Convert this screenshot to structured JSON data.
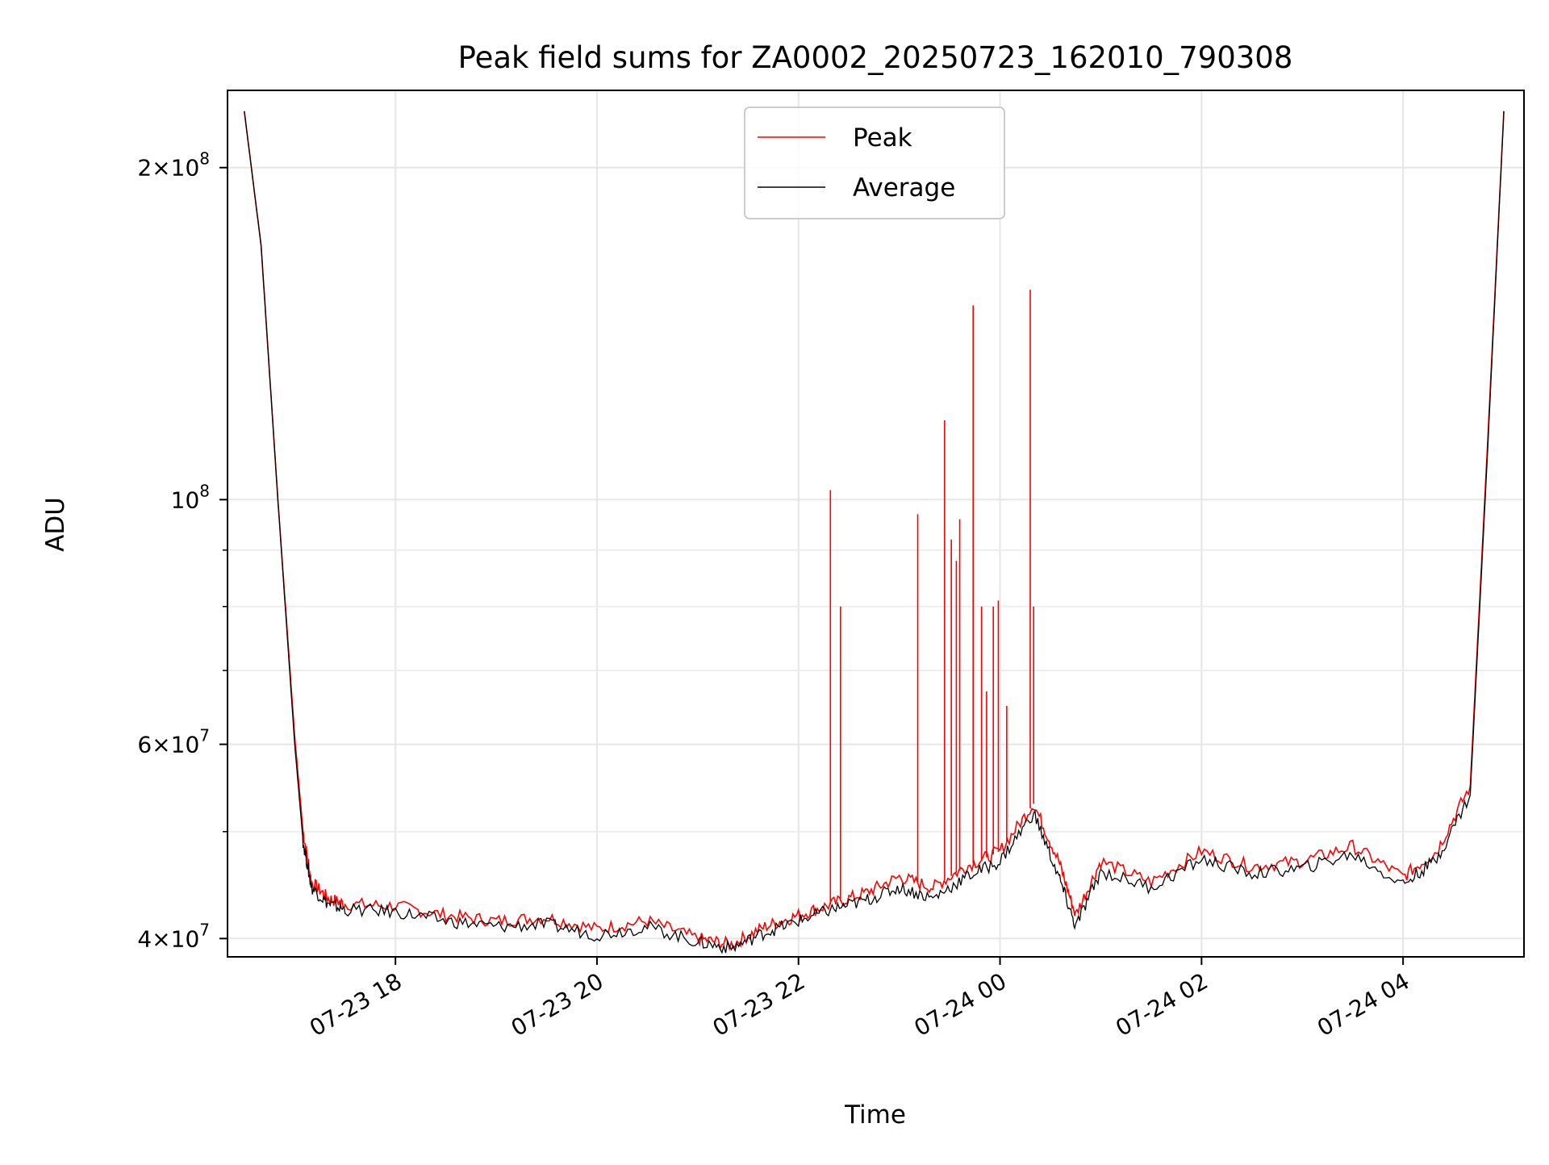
{
  "chart_data": {
    "type": "line",
    "title": "Peak field sums for ZA0002_20250723_162010_790308",
    "xlabel": "Time",
    "ylabel": "ADU",
    "yscale": "log",
    "ylim": [
      38500000,
      235000000
    ],
    "xlim": [
      "2025-07-23 16:20",
      "2025-07-24 05:12"
    ],
    "grid": true,
    "legend_position": "top-center",
    "x_ticks": [
      "2025-07-23 18:00",
      "2025-07-23 20:00",
      "2025-07-23 22:00",
      "2025-07-24 00:00",
      "2025-07-24 02:00",
      "2025-07-24 04:00"
    ],
    "x_tick_labels": [
      "07-23 18",
      "07-23 20",
      "07-23 22",
      "07-24 00",
      "07-24 02",
      "07-24 04"
    ],
    "y_ticks": [
      200000000,
      100000000,
      60000000,
      40000000
    ],
    "y_tick_labels": [
      {
        "base": "2×10",
        "exp": "8"
      },
      {
        "base": "10",
        "exp": "8"
      },
      {
        "base": "6×10",
        "exp": "7"
      },
      {
        "base": "4×10",
        "exp": "7"
      }
    ],
    "y_minor_ticks": [
      50000000,
      70000000,
      80000000,
      90000000
    ],
    "series": [
      {
        "name": "Peak",
        "color": "#ff0000",
        "x": [
          "2025-07-23 16:30",
          "2025-07-23 16:40",
          "2025-07-23 16:50",
          "2025-07-23 17:00",
          "2025-07-23 17:05",
          "2025-07-23 17:10",
          "2025-07-23 17:20",
          "2025-07-23 17:30",
          "2025-07-23 18:00",
          "2025-07-23 18:30",
          "2025-07-23 19:00",
          "2025-07-23 19:30",
          "2025-07-23 20:00",
          "2025-07-23 20:30",
          "2025-07-23 21:00",
          "2025-07-23 21:20",
          "2025-07-23 21:40",
          "2025-07-23 22:00",
          "2025-07-23 22:20",
          "2025-07-23 22:40",
          "2025-07-23 23:00",
          "2025-07-23 23:20",
          "2025-07-23 23:40",
          "2025-07-24 00:00",
          "2025-07-24 00:20",
          "2025-07-24 00:35",
          "2025-07-24 00:45",
          "2025-07-24 01:00",
          "2025-07-24 01:30",
          "2025-07-24 02:00",
          "2025-07-24 02:30",
          "2025-07-24 03:00",
          "2025-07-24 03:30",
          "2025-07-24 04:00",
          "2025-07-24 04:20",
          "2025-07-24 04:40",
          "2025-07-24 04:50",
          "2025-07-24 05:00"
        ],
        "values": [
          225000000,
          170000000,
          100000000,
          61000000,
          50000000,
          45000000,
          43500000,
          43000000,
          42800000,
          42000000,
          41500000,
          41800000,
          40800000,
          41500000,
          40000000,
          39500000,
          41000000,
          42000000,
          43000000,
          44000000,
          45500000,
          44500000,
          46500000,
          48000000,
          53000000,
          47000000,
          42000000,
          47000000,
          45000000,
          48000000,
          46500000,
          47000000,
          48500000,
          45500000,
          48000000,
          55000000,
          110000000,
          225000000
        ]
      },
      {
        "name": "Average",
        "color": "#000000",
        "x": [
          "2025-07-23 16:30",
          "2025-07-23 16:40",
          "2025-07-23 16:50",
          "2025-07-23 17:00",
          "2025-07-23 17:05",
          "2025-07-23 17:10",
          "2025-07-23 17:20",
          "2025-07-23 17:30",
          "2025-07-23 18:00",
          "2025-07-23 18:30",
          "2025-07-23 19:00",
          "2025-07-23 19:30",
          "2025-07-23 20:00",
          "2025-07-23 20:30",
          "2025-07-23 21:00",
          "2025-07-23 21:20",
          "2025-07-23 21:40",
          "2025-07-23 22:00",
          "2025-07-23 22:20",
          "2025-07-23 22:40",
          "2025-07-23 23:00",
          "2025-07-23 23:20",
          "2025-07-23 23:40",
          "2025-07-24 00:00",
          "2025-07-24 00:20",
          "2025-07-24 00:35",
          "2025-07-24 00:45",
          "2025-07-24 01:00",
          "2025-07-24 01:30",
          "2025-07-24 02:00",
          "2025-07-24 02:30",
          "2025-07-24 03:00",
          "2025-07-24 03:30",
          "2025-07-24 04:00",
          "2025-07-24 04:20",
          "2025-07-24 04:40",
          "2025-07-24 04:50",
          "2025-07-24 05:00"
        ],
        "values": [
          225000000,
          170000000,
          100000000,
          60000000,
          49000000,
          44500000,
          43000000,
          42500000,
          42300000,
          41500000,
          41000000,
          41200000,
          40300000,
          41000000,
          39700000,
          39200000,
          40500000,
          41500000,
          42500000,
          43300000,
          44500000,
          43500000,
          45500000,
          47000000,
          52000000,
          45500000,
          41000000,
          46000000,
          44500000,
          47200000,
          45800000,
          46300000,
          47700000,
          44800000,
          47200000,
          54000000,
          108000000,
          225000000
        ]
      }
    ],
    "peak_spikes": {
      "x": [
        "2025-07-23 22:19",
        "2025-07-23 22:25",
        "2025-07-23 23:11",
        "2025-07-23 23:27",
        "2025-07-23 23:31",
        "2025-07-23 23:34",
        "2025-07-23 23:36",
        "2025-07-23 23:44",
        "2025-07-23 23:49",
        "2025-07-23 23:52",
        "2025-07-23 23:56",
        "2025-07-23 23:59",
        "2025-07-24 00:04",
        "2025-07-24 00:18",
        "2025-07-24 00:20"
      ],
      "values": [
        102000000,
        80000000,
        97000000,
        118000000,
        92000000,
        88000000,
        96000000,
        150000000,
        80000000,
        67000000,
        80000000,
        81000000,
        65000000,
        155000000,
        80000000
      ]
    }
  }
}
